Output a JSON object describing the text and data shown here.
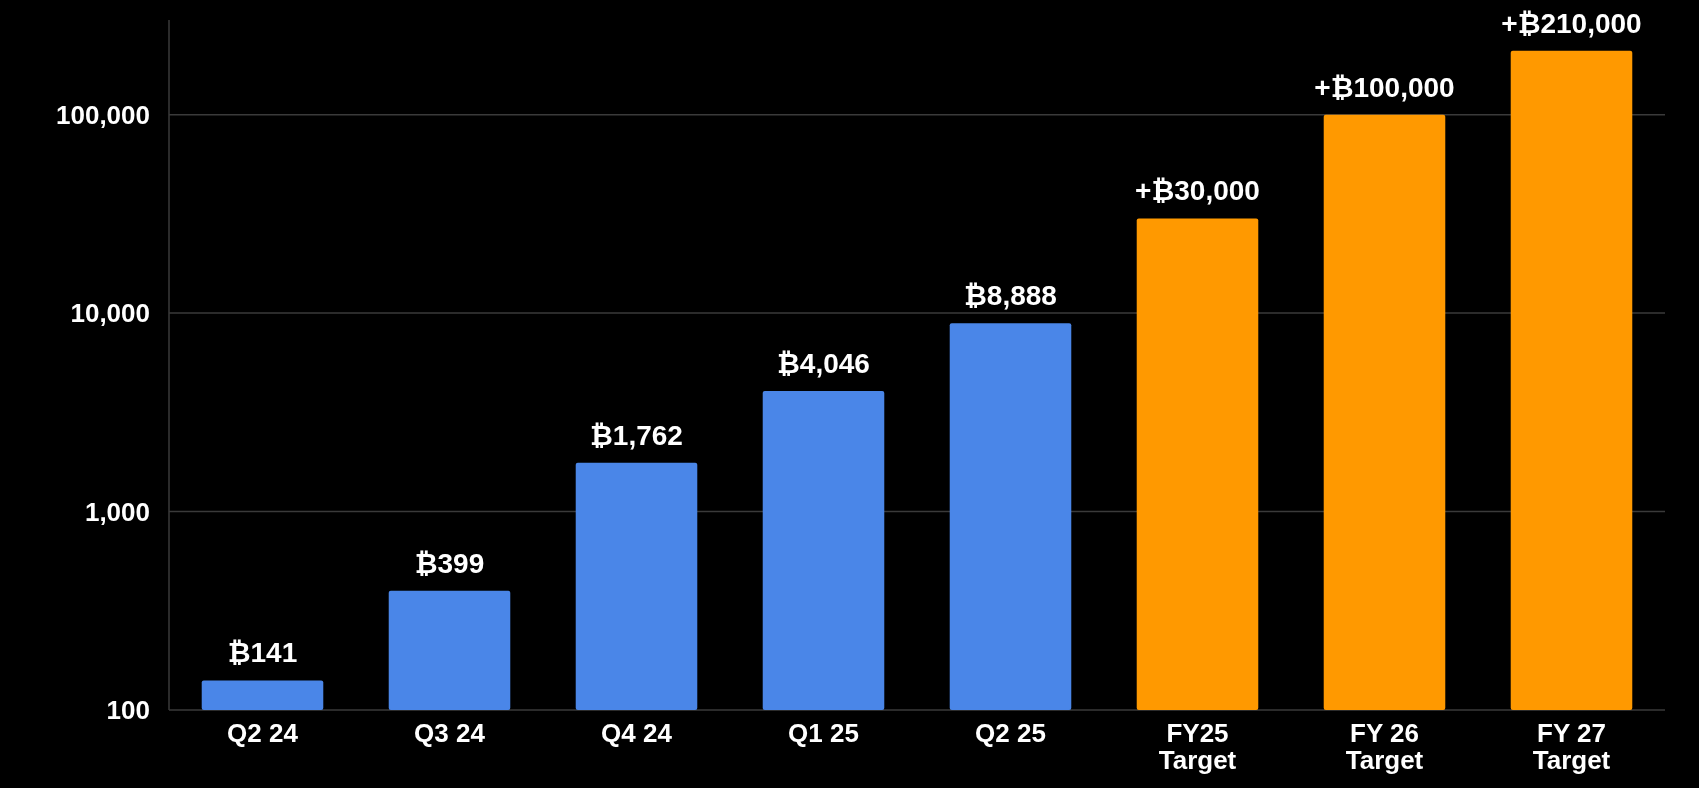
{
  "chart_data": {
    "type": "bar",
    "categories": [
      "Q2 24",
      "Q3 24",
      "Q4 24",
      "Q1 25",
      "Q2 25",
      "FY25\nTarget",
      "FY 26\nTarget",
      "FY 27\nTarget"
    ],
    "values": [
      141,
      399,
      1762,
      4046,
      8888,
      30000,
      100000,
      210000
    ],
    "colors": [
      "#4a86e8",
      "#4a86e8",
      "#4a86e8",
      "#4a86e8",
      "#4a86e8",
      "#ff9900",
      "#ff9900",
      "#ff9900"
    ],
    "value_labels": [
      "₿141",
      "₿399",
      "₿1,762",
      "₿4,046",
      "₿8,888",
      "+₿30,000",
      "+₿100,000",
      "+₿210,000"
    ],
    "log": true,
    "ylim": [
      100,
      300000
    ],
    "yticks": [
      {
        "value": 100,
        "label": "100"
      },
      {
        "value": 1000,
        "label": "1,000"
      },
      {
        "value": 10000,
        "label": "10,000"
      },
      {
        "value": 100000,
        "label": "100,000"
      }
    ],
    "grid": "y"
  }
}
